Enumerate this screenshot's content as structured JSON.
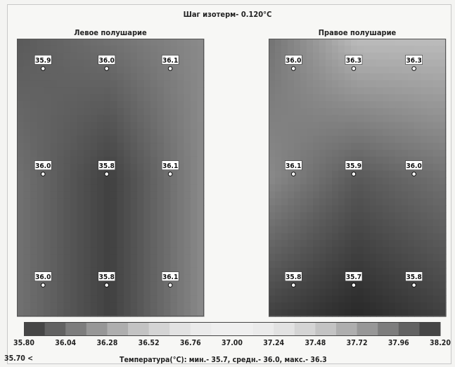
{
  "chart_data": {
    "type": "heatmap",
    "title": "Шаг изотерм- 0.120°C",
    "panels": [
      {
        "name": "Левое полушарие",
        "grid": [
          [
            35.9,
            36.0,
            36.1
          ],
          [
            36.0,
            35.8,
            36.1
          ],
          [
            36.0,
            35.8,
            36.1
          ]
        ]
      },
      {
        "name": "Правое полушарие",
        "grid": [
          [
            36.0,
            36.3,
            36.3
          ],
          [
            36.1,
            35.9,
            36.0
          ],
          [
            35.8,
            35.7,
            35.8
          ]
        ]
      }
    ],
    "colorbar": {
      "ticks": [
        "35.80",
        "36.04",
        "36.28",
        "36.52",
        "36.76",
        "37.00",
        "37.24",
        "37.48",
        "37.72",
        "37.96",
        "38.20"
      ],
      "min": 35.8,
      "max": 38.2,
      "step": 0.12,
      "below_label": "35.70 <"
    },
    "caption": "Температура(°C): мин.-  35.7, средн.-  36.0, макс.-  36.3"
  }
}
